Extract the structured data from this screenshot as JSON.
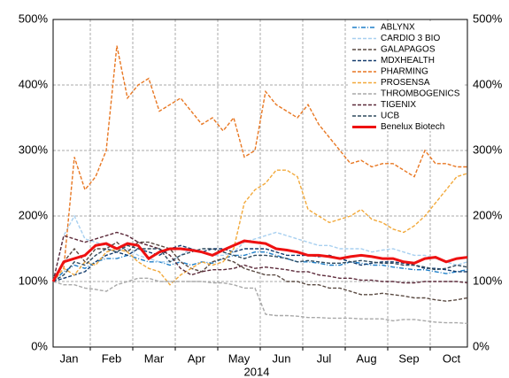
{
  "chart_data": {
    "type": "line",
    "xlabel": "2014",
    "categories": [
      null,
      "Jan",
      null,
      null,
      null,
      "Feb",
      null,
      null,
      null,
      "Mar",
      null,
      null,
      null,
      "Apr",
      null,
      null,
      null,
      "May",
      null,
      null,
      null,
      "Jun",
      null,
      null,
      null,
      "Jul",
      null,
      null,
      null,
      "Aug",
      null,
      null,
      null,
      "Sep",
      null,
      null,
      null,
      "Oct",
      null,
      null
    ],
    "ylim": [
      0,
      500
    ],
    "yticks": [
      {
        "value": 0,
        "label": "0%"
      },
      {
        "value": 100,
        "label": "100%"
      },
      {
        "value": 200,
        "label": "200%"
      },
      {
        "value": 300,
        "label": "300%"
      },
      {
        "value": 400,
        "label": "400%"
      },
      {
        "value": 500,
        "label": "500%"
      }
    ],
    "grid": true,
    "legend": "upper right",
    "series": [
      {
        "name": "ABLYNX",
        "color": "#1f7fc8",
        "dash": "dashdot",
        "values": [
          100,
          115,
          125,
          120,
          130,
          135,
          135,
          140,
          135,
          130,
          130,
          125,
          130,
          125,
          130,
          128,
          135,
          140,
          140,
          145,
          145,
          140,
          135,
          130,
          130,
          128,
          125,
          125,
          130,
          128,
          125,
          125,
          122,
          120,
          118,
          118,
          115,
          112,
          115,
          118
        ]
      },
      {
        "name": "CARDIO 3 BIO",
        "color": "#a8d0f0",
        "dash": "dashed",
        "values": [
          100,
          170,
          200,
          165,
          160,
          155,
          150,
          150,
          140,
          135,
          130,
          130,
          140,
          150,
          145,
          140,
          140,
          145,
          160,
          165,
          170,
          175,
          170,
          165,
          160,
          155,
          155,
          150,
          150,
          150,
          145,
          148,
          150,
          145,
          140,
          140,
          135,
          130,
          125,
          130
        ]
      },
      {
        "name": "GALAPAGOS",
        "color": "#5a4a42",
        "dash": "dashed",
        "values": [
          100,
          130,
          150,
          130,
          150,
          150,
          160,
          145,
          160,
          160,
          155,
          150,
          130,
          120,
          115,
          130,
          135,
          130,
          120,
          115,
          110,
          110,
          100,
          100,
          95,
          95,
          90,
          90,
          85,
          80,
          80,
          82,
          80,
          78,
          75,
          75,
          72,
          70,
          72,
          75
        ]
      },
      {
        "name": "MDXHEALTH",
        "color": "#143c6e",
        "dash": "dashed",
        "values": [
          100,
          105,
          110,
          115,
          130,
          140,
          145,
          140,
          150,
          145,
          140,
          150,
          155,
          150,
          145,
          150,
          150,
          145,
          150,
          150,
          150,
          145,
          140,
          140,
          140,
          138,
          140,
          135,
          130,
          125,
          128,
          130,
          130,
          128,
          125,
          120,
          120,
          118,
          115,
          115
        ]
      },
      {
        "name": "PHARMING",
        "color": "#e87722",
        "dash": "dashed",
        "values": [
          100,
          120,
          290,
          240,
          260,
          300,
          460,
          380,
          400,
          410,
          360,
          370,
          380,
          360,
          340,
          350,
          330,
          350,
          290,
          300,
          390,
          370,
          360,
          350,
          370,
          340,
          320,
          300,
          280,
          285,
          275,
          280,
          280,
          270,
          260,
          300,
          280,
          280,
          275,
          275
        ]
      },
      {
        "name": "PROSENSA",
        "color": "#f2a93b",
        "dash": "dashed",
        "values": [
          100,
          120,
          110,
          130,
          125,
          145,
          150,
          145,
          130,
          120,
          115,
          95,
          110,
          120,
          130,
          125,
          130,
          150,
          220,
          240,
          250,
          270,
          270,
          260,
          210,
          200,
          190,
          195,
          200,
          210,
          195,
          190,
          180,
          175,
          185,
          200,
          220,
          240,
          260,
          265
        ]
      },
      {
        "name": "THROMBOGENICS",
        "color": "#a8a8a8",
        "dash": "dashed",
        "values": [
          100,
          95,
          95,
          90,
          88,
          85,
          95,
          100,
          105,
          105,
          100,
          100,
          100,
          100,
          100,
          98,
          98,
          95,
          90,
          90,
          50,
          48,
          48,
          47,
          45,
          45,
          44,
          44,
          44,
          43,
          43,
          43,
          40,
          42,
          42,
          40,
          38,
          37,
          37,
          36
        ]
      },
      {
        "name": "TIGENIX",
        "color": "#5c2a3a",
        "dash": "dashed",
        "values": [
          100,
          170,
          165,
          160,
          165,
          170,
          175,
          170,
          160,
          155,
          150,
          140,
          120,
          110,
          115,
          118,
          118,
          120,
          125,
          120,
          122,
          120,
          118,
          115,
          115,
          110,
          108,
          105,
          105,
          102,
          102,
          100,
          100,
          98,
          98,
          100,
          100,
          100,
          100,
          98
        ]
      },
      {
        "name": "UCB",
        "color": "#2f4a5e",
        "dash": "dashed",
        "values": [
          100,
          110,
          130,
          125,
          140,
          150,
          145,
          155,
          150,
          150,
          150,
          130,
          140,
          145,
          150,
          150,
          145,
          140,
          135,
          140,
          140,
          138,
          135,
          130,
          132,
          130,
          128,
          128,
          130,
          132,
          130,
          128,
          128,
          125,
          125,
          122,
          118,
          120,
          125,
          122
        ]
      },
      {
        "name": "Benelux Biotech",
        "color": "#ee1111",
        "dash": "solid",
        "values": [
          100,
          130,
          135,
          140,
          155,
          158,
          150,
          158,
          155,
          135,
          145,
          150,
          150,
          148,
          145,
          140,
          148,
          155,
          162,
          160,
          158,
          150,
          148,
          145,
          140,
          140,
          138,
          135,
          138,
          140,
          138,
          135,
          135,
          130,
          128,
          135,
          137,
          130,
          135,
          137
        ]
      }
    ]
  }
}
